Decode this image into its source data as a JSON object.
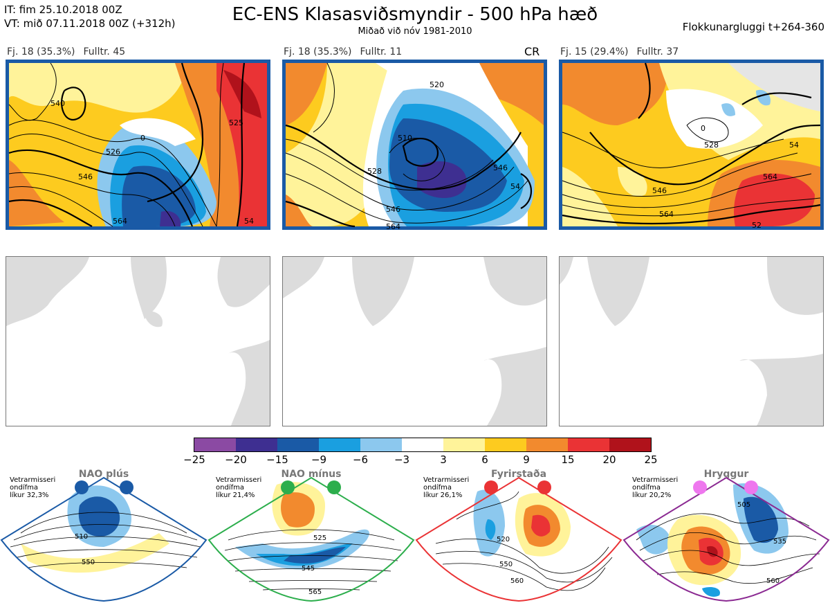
{
  "header": {
    "it_line": "IT: fim 25.10.2018 00Z",
    "vt_line": "VT: mið 07.11.2018 00Z  (+312h)",
    "title": "EC-ENS Klasasviðsmyndir - 500 hPa hæð",
    "subtitle": "Miðað við nóv 1981-2010",
    "window": "Flokkunargluggi t+264-360"
  },
  "clusters": [
    {
      "count": "Fj. 18 (35.3%)",
      "rep": "Fulltr. 45",
      "tag": "",
      "contours": [
        "540",
        "526",
        "546",
        "564",
        "0",
        "525",
        "54"
      ]
    },
    {
      "count": "Fj. 18 (35.3%)",
      "rep": "Fulltr. 11",
      "tag": "CR",
      "contours": [
        "510",
        "528",
        "546",
        "564",
        "546",
        "54",
        "520"
      ]
    },
    {
      "count": "Fj. 15 (29.4%)",
      "rep": "Fulltr. 37",
      "tag": "",
      "contours": [
        "528",
        "546",
        "564",
        "564",
        "0",
        "54",
        "52"
      ]
    }
  ],
  "colorbar": {
    "colors": [
      "#8b4aa3",
      "#3e2f91",
      "#1a5aa6",
      "#1a9fe0",
      "#8cc8ee",
      "#ffffff",
      "#fff39a",
      "#fdcb1f",
      "#f28a2e",
      "#ea3335",
      "#b0121b"
    ],
    "ticks": [
      "−25",
      "−20",
      "−15",
      "−9",
      "−6",
      "−3",
      "3",
      "6",
      "9",
      "15",
      "20",
      "25"
    ]
  },
  "regimes": [
    {
      "name": "NAO plús",
      "note": [
        "Vetrarmisseri",
        "ondífma",
        "líkur 32,3%"
      ],
      "color": "#1a5aa6",
      "contours": [
        "510",
        "550"
      ]
    },
    {
      "name": "NAO mínus",
      "note": [
        "Vetrarmisseri",
        "ondífma",
        "líkur 21,4%"
      ],
      "color": "#2cae4c",
      "contours": [
        "525",
        "545",
        "565"
      ]
    },
    {
      "name": "Fyrirstaða",
      "note": [
        "Vetrarmisseri",
        "ondífma",
        "líkur 26,1%"
      ],
      "color": "#ea3335",
      "contours": [
        "520",
        "550",
        "560"
      ]
    },
    {
      "name": "Hryggur",
      "note": [
        "Vetrarmisseri",
        "ondífma",
        "líkur 20,2%"
      ],
      "color": "#8b2a92",
      "contours": [
        "505",
        "535",
        "560"
      ]
    }
  ]
}
